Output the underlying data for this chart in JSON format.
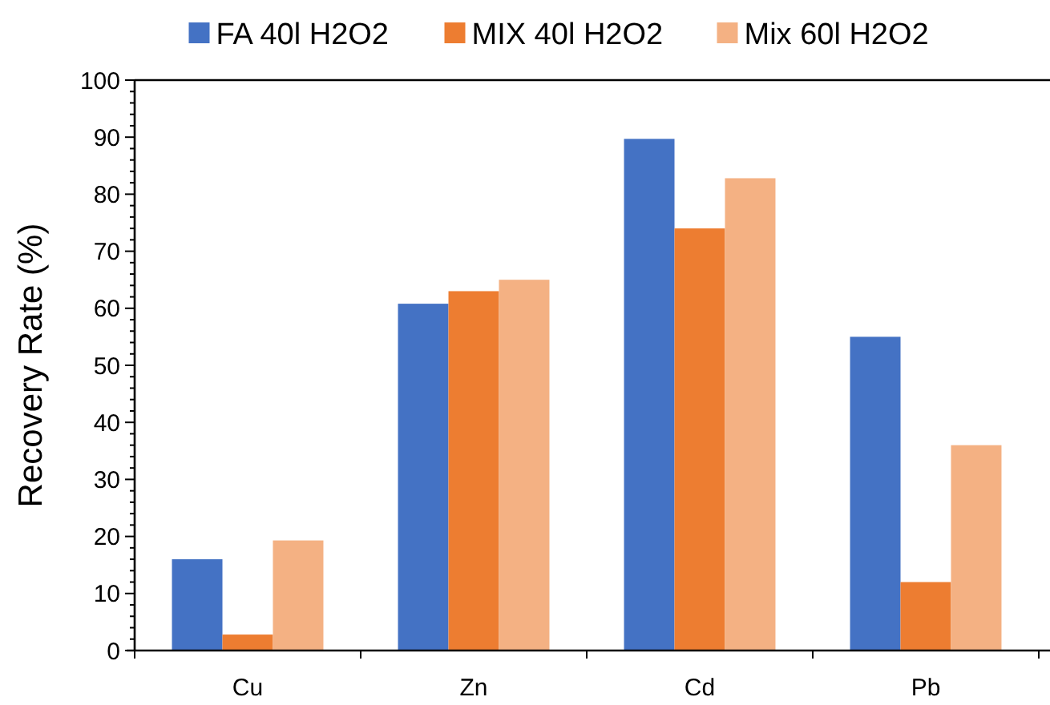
{
  "chart_data": {
    "type": "bar",
    "ylabel": "Recovery Rate (%)",
    "categories": [
      "Cu",
      "Zn",
      "Cd",
      "Pb"
    ],
    "series": [
      {
        "name": "FA 40l H2O2",
        "color": "#4472c4",
        "values": [
          16,
          60.8,
          89.7,
          55
        ]
      },
      {
        "name": "MIX 40l H2O2",
        "color": "#ed7d31",
        "values": [
          2.8,
          63,
          74,
          12
        ]
      },
      {
        "name": "Mix 60l H2O2",
        "color": "#f4b183",
        "values": [
          19.3,
          65,
          82.8,
          36
        ]
      }
    ],
    "ylim": [
      0,
      100
    ],
    "yticks": [
      0,
      10,
      20,
      30,
      40,
      50,
      60,
      70,
      80,
      90,
      100
    ],
    "grid": false,
    "legend": "top"
  }
}
